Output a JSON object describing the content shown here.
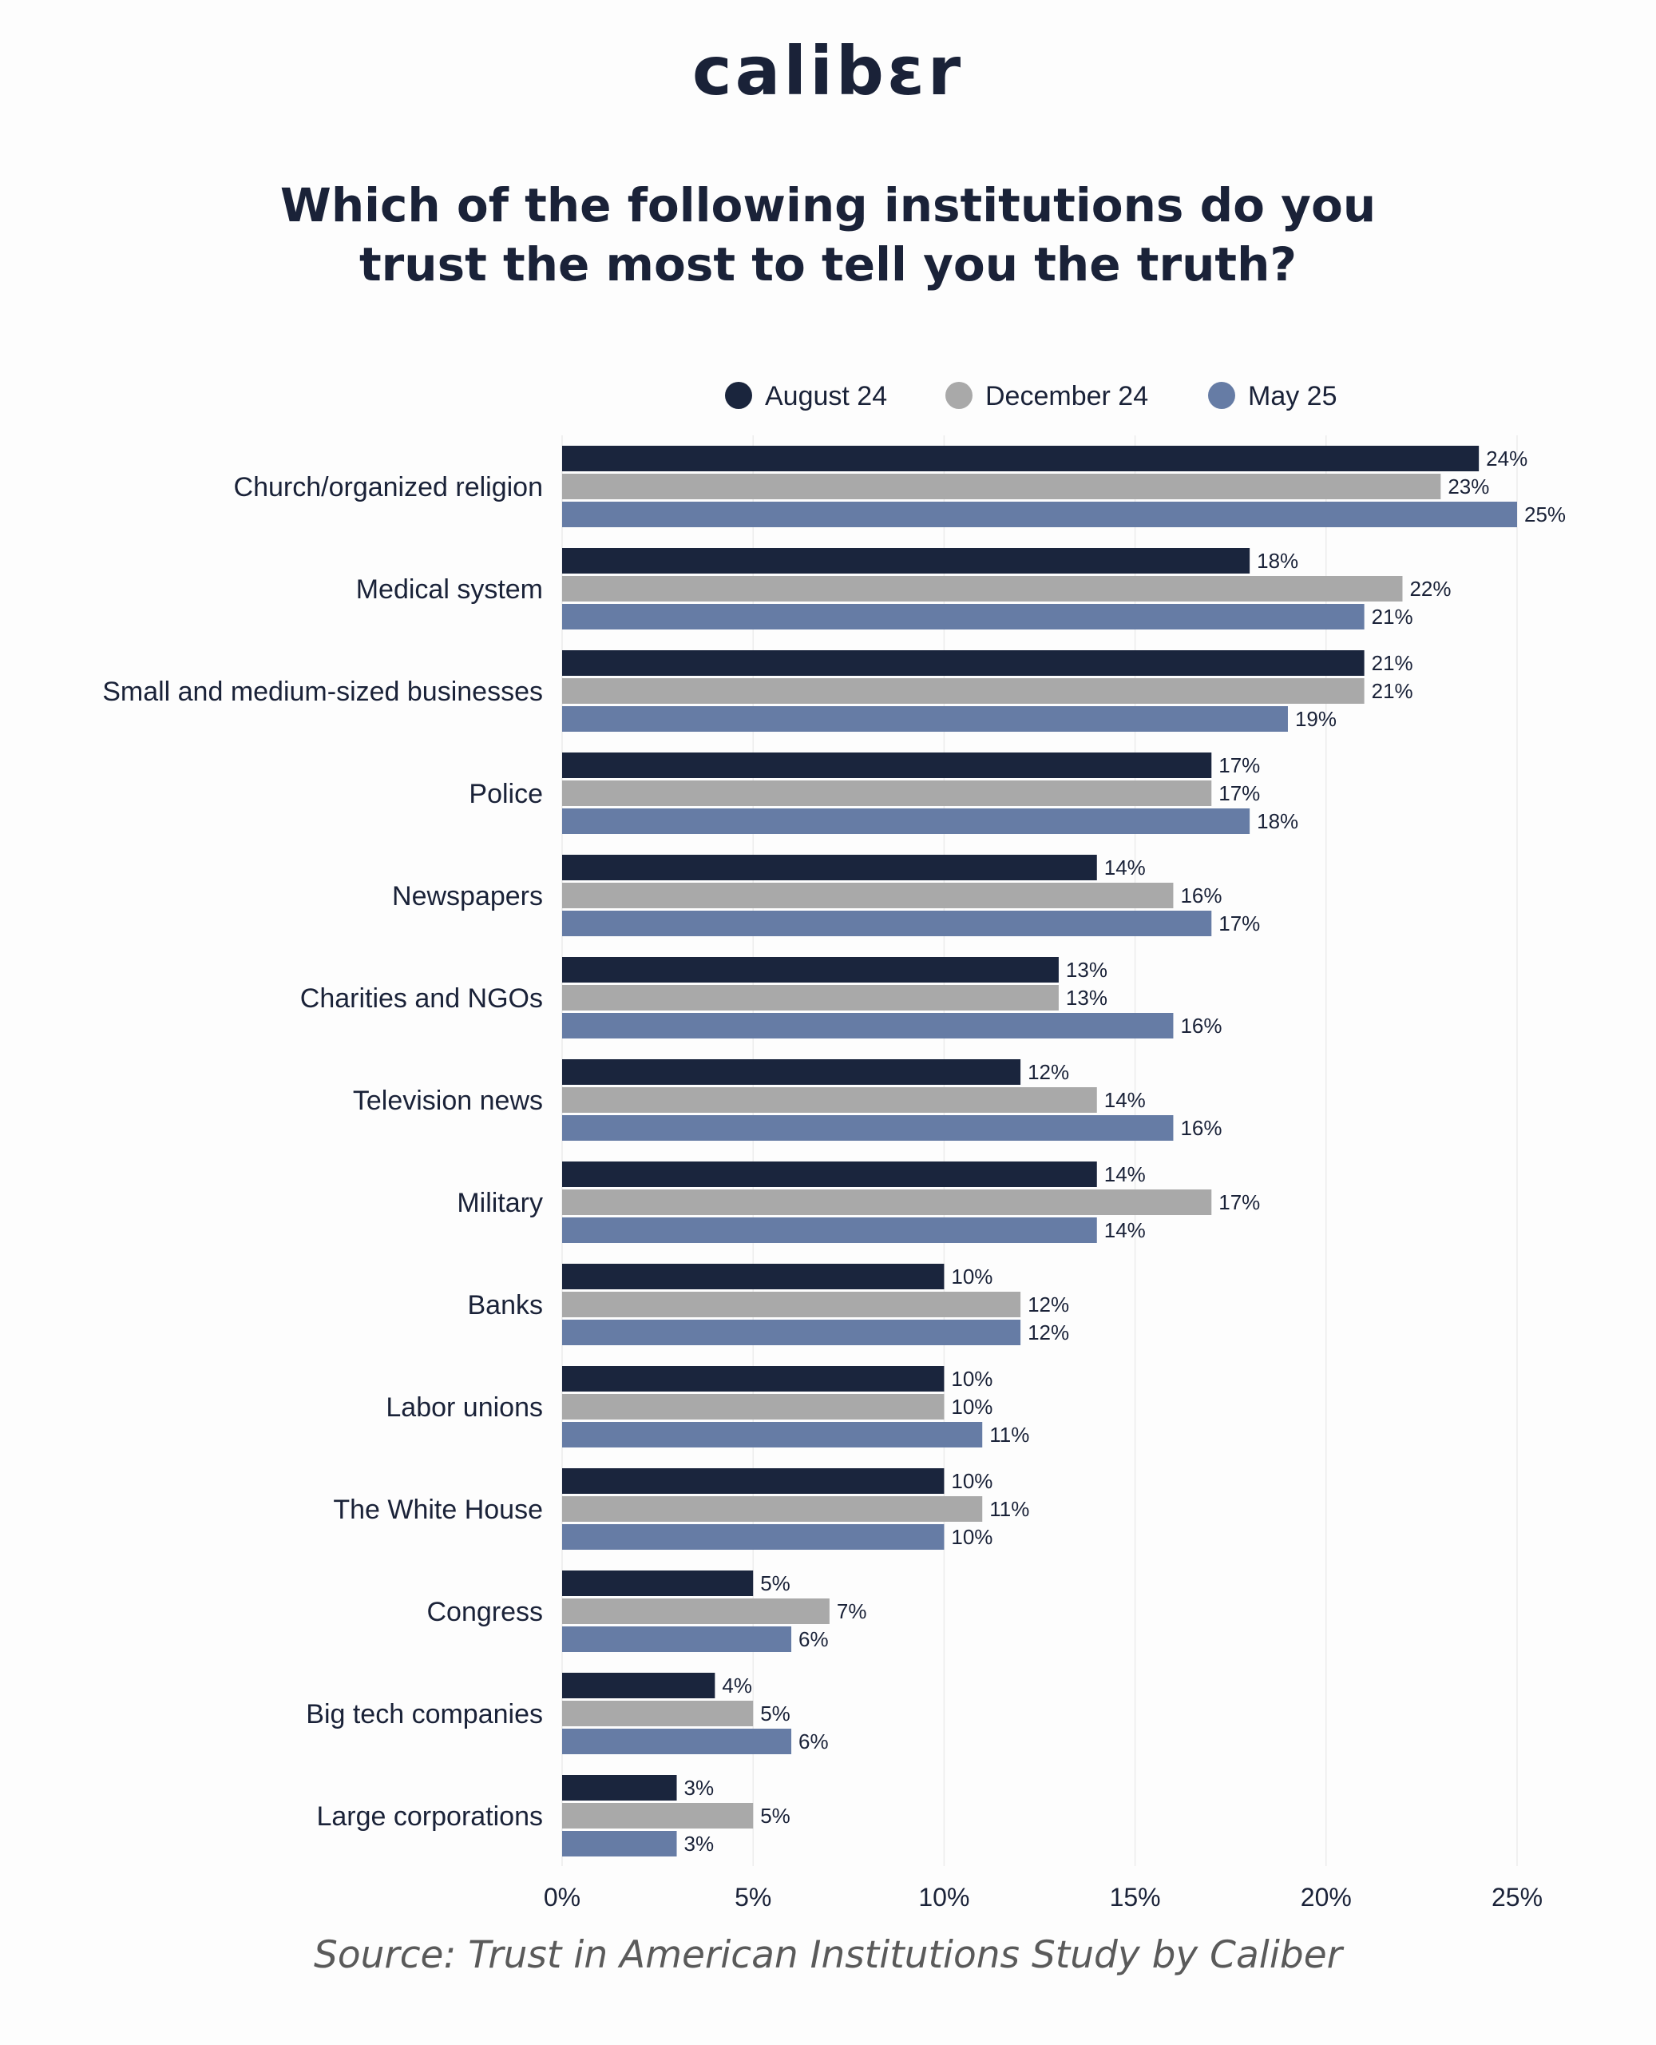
{
  "brand": {
    "logo_text": "calibɛr"
  },
  "header": {
    "title_line1": "Which of the following institutions do you",
    "title_line2": "trust the most to tell you the truth?"
  },
  "footer": {
    "source": "Source: Trust in American Institutions Study by Caliber"
  },
  "chart_data": {
    "type": "bar",
    "orientation": "horizontal",
    "categories": [
      "Church/organized religion",
      "Medical system",
      "Small and medium-sized businesses",
      "Police",
      "Newspapers",
      "Charities and NGOs",
      "Television news",
      "Military",
      "Banks",
      "Labor unions",
      "The White House",
      "Congress",
      "Big tech companies",
      "Large corporations"
    ],
    "series": [
      {
        "name": "August 24",
        "color": "#1a253d",
        "values": [
          24,
          18,
          21,
          17,
          14,
          13,
          12,
          14,
          10,
          10,
          10,
          5,
          4,
          3
        ]
      },
      {
        "name": "December 24",
        "color": "#a9a9a9",
        "values": [
          23,
          22,
          21,
          17,
          16,
          13,
          14,
          17,
          12,
          10,
          11,
          7,
          5,
          5
        ]
      },
      {
        "name": "May 25",
        "color": "#667ca5",
        "values": [
          25,
          21,
          19,
          18,
          17,
          16,
          16,
          14,
          12,
          11,
          10,
          6,
          6,
          3
        ]
      }
    ],
    "value_suffix": "%",
    "xlim": [
      0,
      25
    ],
    "xticks": [
      "0%",
      "5%",
      "10%",
      "15%",
      "20%",
      "25%"
    ],
    "xtick_values": [
      0,
      5,
      10,
      15,
      20,
      25
    ],
    "legend_position": "top",
    "grid": true
  }
}
